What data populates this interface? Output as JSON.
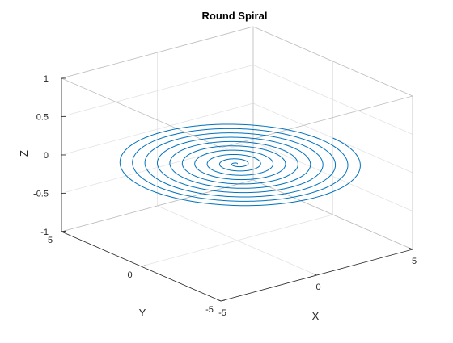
{
  "chart_data": {
    "type": "line",
    "projection": "3d",
    "title": "Round Spiral",
    "xlabel": "X",
    "ylabel": "Y",
    "zlabel": "Z",
    "xlim": [
      -5,
      5
    ],
    "ylim": [
      -5,
      5
    ],
    "zlim": [
      -1,
      1
    ],
    "xticks": [
      "-5",
      "0",
      "5"
    ],
    "yticks": [
      "-5",
      "0",
      "5"
    ],
    "zticks": [
      "-1",
      "-0.5",
      "0",
      "0.5",
      "1"
    ],
    "grid": true,
    "box": true,
    "series": [
      {
        "color": "#0072BD",
        "curve": "x = r*cos(t), y = r*sin(t), z = 0, r grows linearly with t",
        "turns": 10,
        "r_start": 0,
        "r_end": 5,
        "z": 0
      }
    ]
  }
}
